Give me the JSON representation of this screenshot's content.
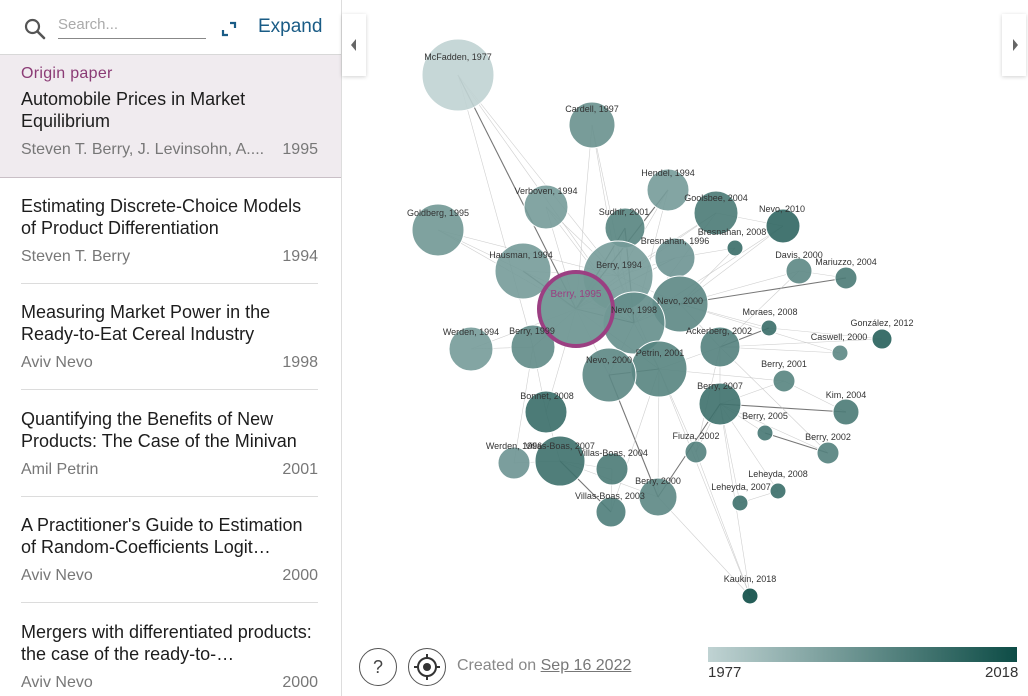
{
  "search": {
    "placeholder": "Search..."
  },
  "toolbar": {
    "expand_label": "Expand"
  },
  "origin": {
    "tag": "Origin paper",
    "title": "Automobile Prices in Market Equilibrium",
    "authors": "Steven T. Berry, J. Levinsohn, A....",
    "year": "1995"
  },
  "papers": [
    {
      "title": "Estimating Discrete-Choice Models of Product Differentiation",
      "authors": "Steven T. Berry",
      "year": "1994"
    },
    {
      "title": "Measuring Market Power in the Ready-to-Eat Cereal Industry",
      "authors": "Aviv Nevo",
      "year": "1998"
    },
    {
      "title": "Quantifying the Benefits of New Products: The Case of the Minivan",
      "authors": "Amil Petrin",
      "year": "2001"
    },
    {
      "title": "A Practitioner's Guide to Estimation of Random-Coefficients Logit…",
      "authors": "Aviv Nevo",
      "year": "2000"
    },
    {
      "title": "Mergers with differentiated products: the case of the ready-to-…",
      "authors": "Aviv Nevo",
      "year": "2000"
    }
  ],
  "footer": {
    "created_prefix": "Created on",
    "created_date": "Sep 16 2022"
  },
  "legend": {
    "min_year": "1977",
    "max_year": "2018",
    "color_min": "#c0d3d3",
    "color_max": "#0d4c46"
  },
  "graph": {
    "origin_label": "Berry, 1995",
    "nodes": [
      {
        "label": "McFadden, 1977",
        "year": 1977
      },
      {
        "label": "Cardell, 1997",
        "year": 1997
      },
      {
        "label": "Hendel, 1994",
        "year": 1994
      },
      {
        "label": "Verboven, 1994",
        "year": 1994
      },
      {
        "label": "Goolsbee, 2004",
        "year": 2004
      },
      {
        "label": "Nevo, 2010",
        "year": 2010
      },
      {
        "label": "Goldberg, 1995",
        "year": 1995
      },
      {
        "label": "Sudhir, 2001",
        "year": 2001
      },
      {
        "label": "Bresnahan, 2008",
        "year": 2008
      },
      {
        "label": "Bresnahan, 1996",
        "year": 1996
      },
      {
        "label": "Hausman, 1994",
        "year": 1994
      },
      {
        "label": "Berry, 1994",
        "year": 1994
      },
      {
        "label": "Davis, 2000",
        "year": 2000
      },
      {
        "label": "Mariuzzo, 2004",
        "year": 2004
      },
      {
        "label": "Nevo, 2000",
        "year": 2000
      },
      {
        "label": "Nevo, 1998",
        "year": 1998
      },
      {
        "label": "Moraes, 2008",
        "year": 2008
      },
      {
        "label": "González, 2012",
        "year": 2012
      },
      {
        "label": "Ackerberg, 2002",
        "year": 2002
      },
      {
        "label": "Caswell, 2000",
        "year": 2000
      },
      {
        "label": "Werden, 1994",
        "year": 1994
      },
      {
        "label": "Berry, 1999",
        "year": 1999
      },
      {
        "label": "Petrin, 2001",
        "year": 2001
      },
      {
        "label": "Nevo, 2000",
        "year": 2000
      },
      {
        "label": "Berry, 2001",
        "year": 2001
      },
      {
        "label": "Berry, 2007",
        "year": 2007
      },
      {
        "label": "Berry, 1995",
        "year": 1995
      },
      {
        "label": "Bonnet, 2008",
        "year": 2008
      },
      {
        "label": "Kim, 2004",
        "year": 2004
      },
      {
        "label": "Berry, 2005",
        "year": 2005
      },
      {
        "label": "Berry, 2002",
        "year": 2002
      },
      {
        "label": "Werden, 1996",
        "year": 1996
      },
      {
        "label": "Villas-Boas, 2007",
        "year": 2007
      },
      {
        "label": "Fiuza, 2002",
        "year": 2002
      },
      {
        "label": "Villas-Boas, 2004",
        "year": 2004
      },
      {
        "label": "Leheyda, 2008",
        "year": 2008
      },
      {
        "label": "Berry, 2000",
        "year": 2000
      },
      {
        "label": "Leheyda, 2007",
        "year": 2007
      },
      {
        "label": "Villas-Boas, 2003",
        "year": 2003
      },
      {
        "label": "Kaukin, 2018",
        "year": 2018
      }
    ]
  }
}
